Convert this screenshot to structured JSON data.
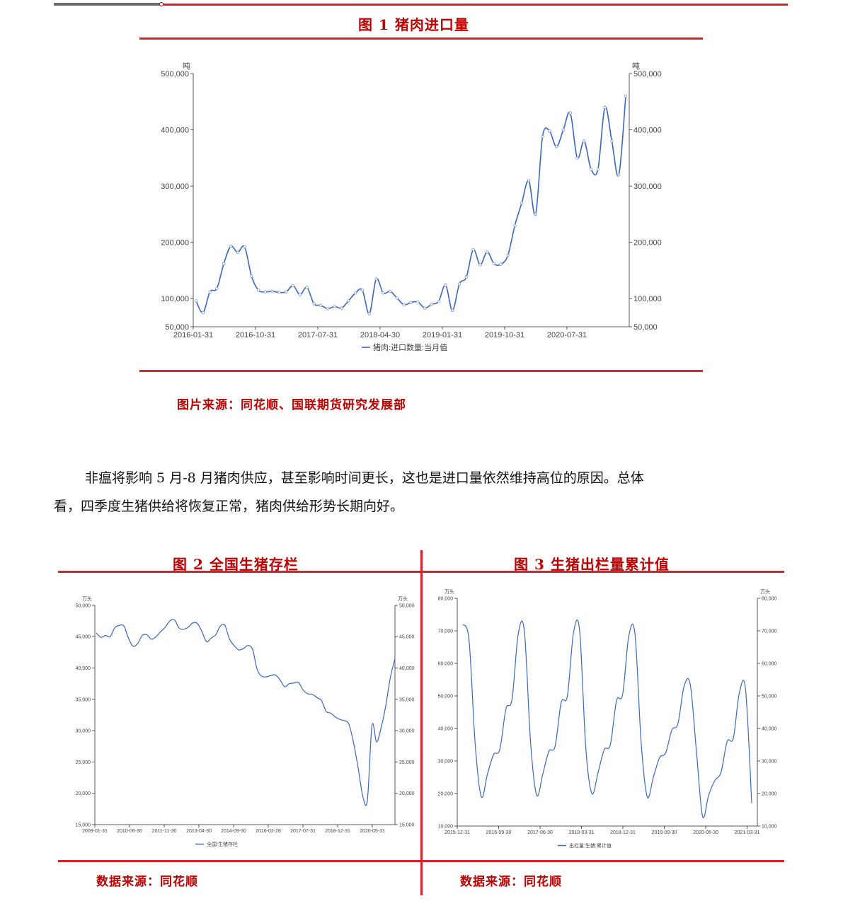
{
  "colors": {
    "accent_red": "#c00000",
    "line_red": "#d6202a",
    "series_blue": "#3a66c4",
    "axis_gray": "#555555"
  },
  "figure1": {
    "title": "图 1   猪肉进口量",
    "source": "图片来源：同花顺、国联期货研究发展部",
    "chart_data": {
      "type": "line",
      "unit_left": "吨",
      "unit_right": "吨",
      "ylim": [
        50000,
        500000
      ],
      "y_ticks": [
        50000,
        100000,
        200000,
        300000,
        400000,
        500000
      ],
      "y_tick_labels": [
        "50,000",
        "100,000",
        "200,000",
        "300,000",
        "400,000",
        "500,000"
      ],
      "x_tick_labels": [
        "2016-01-31",
        "2016-10-31",
        "2017-07-31",
        "2018-04-30",
        "2019-01-31",
        "2019-10-31",
        "2020-07-31"
      ],
      "legend": "猪肉:进口数量:当月值",
      "series": [
        {
          "name": "猪肉:进口数量:当月值",
          "values": [
            96000,
            75000,
            112000,
            118000,
            162000,
            193000,
            182000,
            192000,
            140000,
            115000,
            112000,
            113000,
            111000,
            112000,
            123000,
            107000,
            120000,
            91000,
            88000,
            82000,
            86000,
            83000,
            96000,
            110000,
            115000,
            73000,
            135000,
            110000,
            113000,
            101000,
            89000,
            93000,
            94000,
            83000,
            90000,
            95000,
            124000,
            79000,
            126000,
            138000,
            187000,
            160000,
            183000,
            162000,
            161000,
            177000,
            230000,
            270000,
            310000,
            250000,
            388000,
            398000,
            370000,
            400000,
            430000,
            350000,
            380000,
            330000,
            330000,
            440000,
            380000,
            320000,
            460000
          ]
        }
      ]
    }
  },
  "paragraph": {
    "line1": "非瘟将影响 5 月-8 月猪肉供应，甚至影响时间更长，这也是进口量依然维持高位的原因。总体",
    "line2": "看，四季度生猪供给将恢复正常，猪肉供给形势长期向好。"
  },
  "figure2": {
    "title": "图 2   全国生猪存栏",
    "source": "数据来源：同花顺",
    "chart_data": {
      "type": "line",
      "unit_left": "万头",
      "unit_right": "万头",
      "ylim": [
        15000,
        50000
      ],
      "y_ticks": [
        15000,
        20000,
        25000,
        30000,
        35000,
        40000,
        45000,
        50000
      ],
      "y_tick_labels": [
        "15,000",
        "20,000",
        "25,000",
        "30,000",
        "35,000",
        "40,000",
        "45,000",
        "50,000"
      ],
      "x_tick_labels": [
        "2009-01-31",
        "2010-06-30",
        "2011-11-30",
        "2013-04-30",
        "2014-09-30",
        "2016-02-28",
        "2017-07-31",
        "2018-12-31",
        "2020-05-31"
      ],
      "legend": "全国:生猪存栏",
      "series": [
        {
          "name": "全国:生猪存栏",
          "values": [
            45600,
            44900,
            45200,
            45000,
            46400,
            46800,
            46700,
            44800,
            43500,
            43900,
            45200,
            45300,
            44600,
            45000,
            45800,
            46500,
            47500,
            47700,
            46400,
            46200,
            46500,
            47200,
            47100,
            45800,
            44200,
            44800,
            45300,
            46700,
            46800,
            44600,
            43600,
            42900,
            43100,
            43600,
            43000,
            39800,
            38700,
            38600,
            38800,
            38900,
            38100,
            37000,
            37500,
            37600,
            37700,
            36500,
            35900,
            35800,
            35300,
            34800,
            33100,
            32800,
            32200,
            31800,
            31600,
            31000,
            28000,
            24000,
            19500,
            18900,
            30800,
            28200,
            30500,
            34000,
            38500,
            41500
          ]
        }
      ]
    }
  },
  "figure3": {
    "title": "图 3   生猪出栏量累计值",
    "source": "数据来源：同花顺",
    "chart_data": {
      "type": "line",
      "unit_left": "万头",
      "unit_right": "万头",
      "ylim": [
        10000,
        80000
      ],
      "y_ticks": [
        10000,
        20000,
        30000,
        40000,
        50000,
        60000,
        70000,
        80000
      ],
      "y_tick_labels": [
        "10,000",
        "20,000",
        "30,000",
        "40,000",
        "50,000",
        "60,000",
        "70,000",
        "80,000"
      ],
      "x_tick_labels": [
        "2015-12-31",
        "2016-09-30",
        "2017-06-30",
        "2018-03-31",
        "2018-12-31",
        "2019-09-30",
        "2020-06-30",
        "2021-03-31"
      ],
      "legend": "出栏量:生猪:累计值",
      "series": [
        {
          "name": "出栏量:生猪:累计值",
          "values": [
            72000,
            67000,
            35000,
            19000,
            26000,
            32000,
            33500,
            46000,
            49000,
            69000,
            70000,
            36000,
            19500,
            26000,
            33000,
            34500,
            48000,
            50000,
            69500,
            70000,
            34000,
            20000,
            26500,
            33500,
            35000,
            48500,
            50500,
            68500,
            69000,
            36000,
            19000,
            25000,
            31000,
            32500,
            39500,
            41500,
            53000,
            53500,
            33000,
            13000,
            19500,
            24000,
            26500,
            36000,
            37000,
            51000,
            52000,
            17000
          ]
        }
      ]
    }
  }
}
